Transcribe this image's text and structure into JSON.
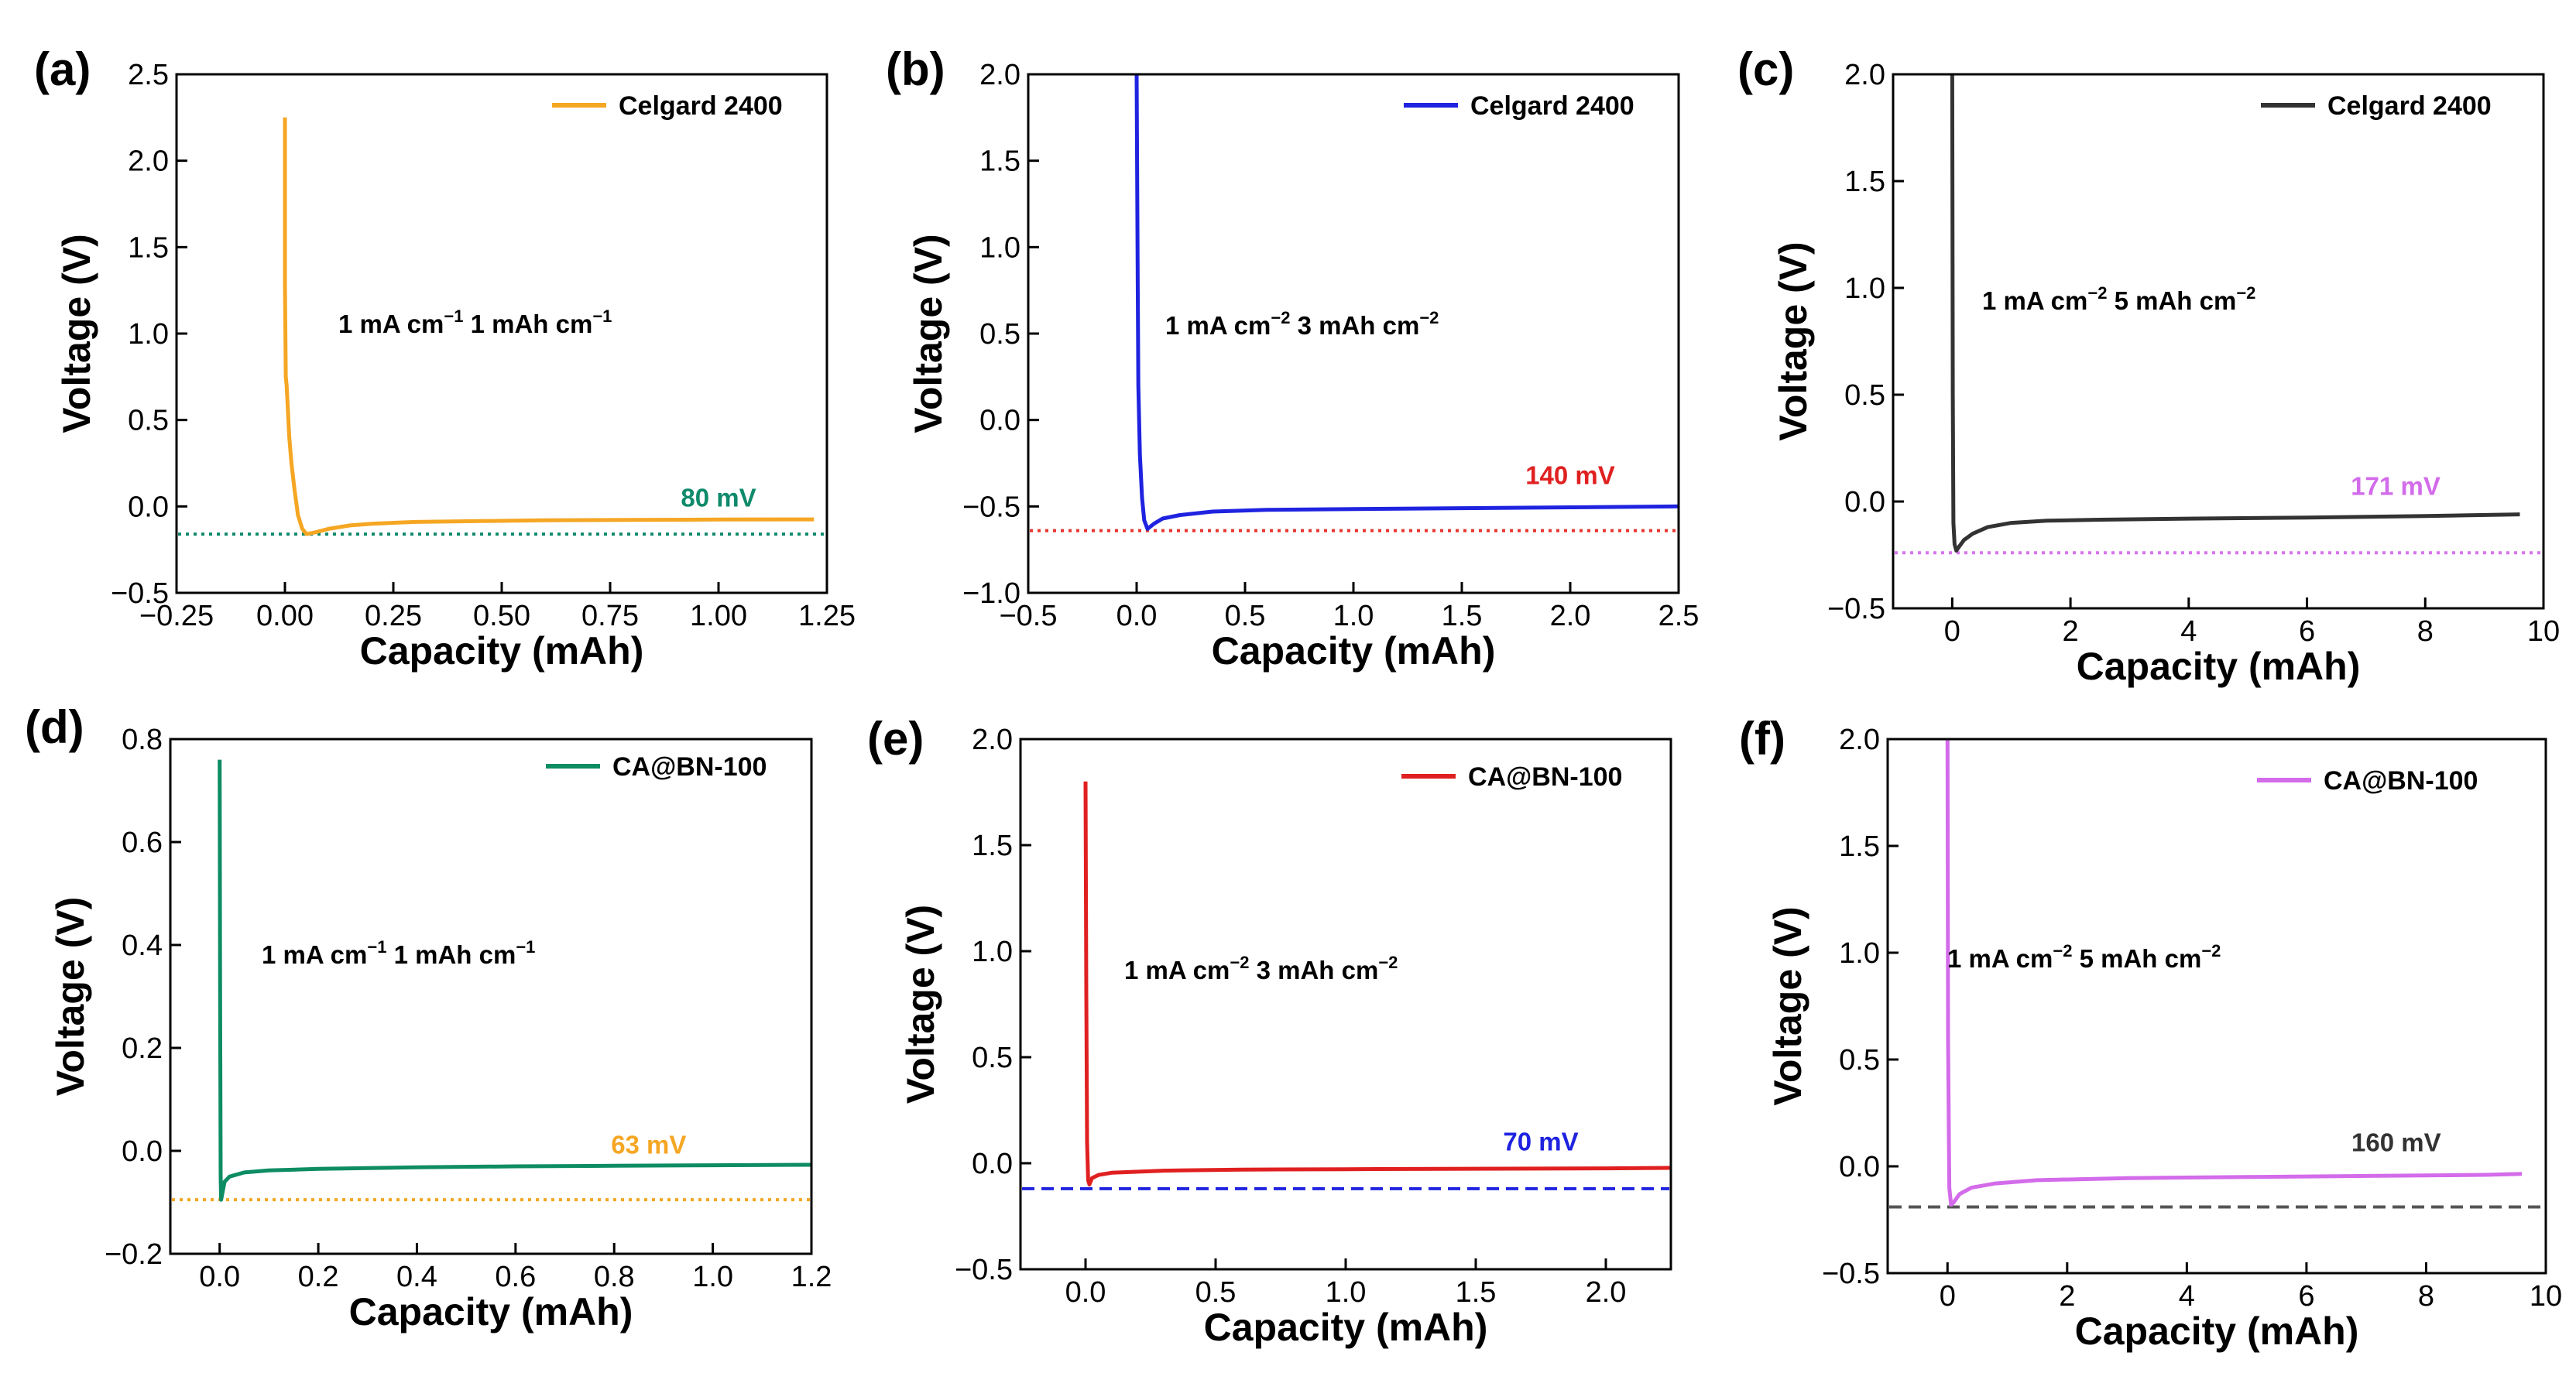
{
  "figure": {
    "description_free": true
  },
  "chart_data": [
    {
      "type": "line",
      "panel": "(a)",
      "xlabel": "Capacity (mAh)",
      "ylabel": "Voltage (V)",
      "xlim": [
        -0.25,
        1.25
      ],
      "ylim": [
        -0.5,
        2.5
      ],
      "xticks": [
        -0.25,
        0.0,
        0.25,
        0.5,
        0.75,
        1.0,
        1.25
      ],
      "xtick_labels": [
        "−0.25",
        "0.00",
        "0.25",
        "0.50",
        "0.75",
        "1.00",
        "1.25"
      ],
      "yticks": [
        -0.5,
        0.0,
        0.5,
        1.0,
        1.5,
        2.0,
        2.5
      ],
      "ytick_labels": [
        "−0.5",
        "0.0",
        "0.5",
        "1.0",
        "1.5",
        "2.0",
        "2.5"
      ],
      "legend": "Celgard 2400",
      "legend_position": "top-right",
      "condition": {
        "current": "1 mA cm",
        "current_exp": "−1",
        "capacity": "1 mAh cm",
        "capacity_exp": "−1"
      },
      "series": [
        {
          "name": "Celgard 2400",
          "color": "#F5A623",
          "x": [
            0.0,
            0.0,
            0.002,
            0.004,
            0.007,
            0.01,
            0.015,
            0.022,
            0.03,
            0.04,
            0.05,
            0.07,
            0.1,
            0.15,
            0.2,
            0.3,
            0.45,
            0.6,
            0.8,
            1.0,
            1.22
          ],
          "y": [
            2.25,
            1.3,
            0.75,
            0.7,
            0.55,
            0.4,
            0.25,
            0.1,
            -0.05,
            -0.13,
            -0.16,
            -0.15,
            -0.13,
            -0.11,
            -0.1,
            -0.09,
            -0.085,
            -0.08,
            -0.078,
            -0.076,
            -0.075
          ]
        }
      ],
      "reference_line": {
        "y": -0.16,
        "color": "#0F8A6A",
        "style": "dotted"
      },
      "overpotential_label": "80 mV",
      "overpotential_color": "#0F8A6A",
      "label_at": [
        1.0,
        -0.0
      ]
    },
    {
      "type": "line",
      "panel": "(b)",
      "xlabel": "Capacity (mAh)",
      "ylabel": "Voltage (V)",
      "xlim": [
        -0.5,
        2.5
      ],
      "ylim": [
        -1.0,
        2.0
      ],
      "xticks": [
        -0.5,
        0.0,
        0.5,
        1.0,
        1.5,
        2.0,
        2.5
      ],
      "xtick_labels": [
        "−0.5",
        "0.0",
        "0.5",
        "1.0",
        "1.5",
        "2.0",
        "2.5"
      ],
      "yticks": [
        -1.0,
        -0.5,
        0.0,
        0.5,
        1.0,
        1.5,
        2.0
      ],
      "ytick_labels": [
        "−1.0",
        "−0.5",
        "0.0",
        "0.5",
        "1.0",
        "1.5",
        "2.0"
      ],
      "legend": "Celgard 2400",
      "legend_position": "top-right",
      "condition": {
        "current": "1 mA cm",
        "current_exp": "−2",
        "capacity": "3 mAh cm",
        "capacity_exp": "−2"
      },
      "series": [
        {
          "name": "Celgard 2400",
          "color": "#1F23E0",
          "x": [
            0.0,
            0.005,
            0.008,
            0.015,
            0.025,
            0.035,
            0.05,
            0.08,
            0.12,
            0.2,
            0.35,
            0.6,
            1.0,
            1.5,
            2.0,
            2.5
          ],
          "y": [
            2.0,
            0.8,
            0.2,
            -0.2,
            -0.45,
            -0.58,
            -0.63,
            -0.6,
            -0.57,
            -0.55,
            -0.53,
            -0.52,
            -0.515,
            -0.51,
            -0.505,
            -0.5
          ]
        }
      ],
      "reference_line": {
        "y": -0.64,
        "color": "#E8352E",
        "style": "dotted"
      },
      "overpotential_label": "140 mV",
      "overpotential_color": "#E02020",
      "label_at": [
        2.0,
        -0.37
      ]
    },
    {
      "type": "line",
      "panel": "(c)",
      "xlabel": "Capacity (mAh)",
      "ylabel": "Voltage (V)",
      "xlim": [
        -1,
        10
      ],
      "ylim": [
        -0.5,
        2.0
      ],
      "xticks": [
        0,
        2,
        4,
        6,
        8,
        10
      ],
      "xtick_labels": [
        "0",
        "2",
        "4",
        "6",
        "8",
        "10"
      ],
      "yticks": [
        -0.5,
        0.0,
        0.5,
        1.0,
        1.5,
        2.0
      ],
      "ytick_labels": [
        "−0.5",
        "0.0",
        "0.5",
        "1.0",
        "1.5",
        "2.0"
      ],
      "legend": "Celgard 2400",
      "legend_position": "top-right",
      "condition": {
        "current": "1 mA cm",
        "current_exp": "−2",
        "capacity": "5 mAh cm",
        "capacity_exp": "−2"
      },
      "series": [
        {
          "name": "Celgard 2400",
          "color": "#333333",
          "x": [
            0.0,
            0.01,
            0.02,
            0.04,
            0.07,
            0.12,
            0.2,
            0.35,
            0.6,
            1.0,
            1.6,
            2.5,
            4.0,
            6.0,
            8.0,
            9.6
          ],
          "y": [
            2.0,
            0.5,
            -0.1,
            -0.2,
            -0.23,
            -0.21,
            -0.18,
            -0.15,
            -0.12,
            -0.1,
            -0.09,
            -0.085,
            -0.08,
            -0.075,
            -0.068,
            -0.06
          ]
        }
      ],
      "reference_line": {
        "y": -0.24,
        "color": "#D874EE",
        "style": "dotted"
      },
      "overpotential_label": "171 mV",
      "overpotential_color": "#D36BEA",
      "label_at": [
        7.5,
        0.03
      ]
    },
    {
      "type": "line",
      "panel": "(d)",
      "xlabel": "Capacity (mAh)",
      "ylabel": "Voltage (V)",
      "xlim": [
        -0.1,
        1.2
      ],
      "ylim": [
        -0.2,
        0.8
      ],
      "xticks": [
        0.0,
        0.2,
        0.4,
        0.6,
        0.8,
        1.0,
        1.2
      ],
      "xtick_labels": [
        "0.0",
        "0.2",
        "0.4",
        "0.6",
        "0.8",
        "1.0",
        "1.2"
      ],
      "yticks": [
        -0.2,
        0.0,
        0.2,
        0.4,
        0.6,
        0.8
      ],
      "ytick_labels": [
        "−0.2",
        "0.0",
        "0.2",
        "0.4",
        "0.6",
        "0.8"
      ],
      "legend": "CA@BN-100",
      "legend_position": "top-right",
      "condition": {
        "current": "1 mA cm",
        "current_exp": "−1",
        "capacity": "1 mAh cm",
        "capacity_exp": "−1"
      },
      "series": [
        {
          "name": "CA@BN-100",
          "color": "#0E8C63",
          "x": [
            0.0,
            0.001,
            0.002,
            0.003,
            0.006,
            0.01,
            0.02,
            0.05,
            0.1,
            0.2,
            0.4,
            0.6,
            0.8,
            1.0,
            1.2
          ],
          "y": [
            0.76,
            0.3,
            -0.05,
            -0.095,
            -0.08,
            -0.06,
            -0.05,
            -0.042,
            -0.038,
            -0.035,
            -0.032,
            -0.03,
            -0.029,
            -0.028,
            -0.027
          ]
        }
      ],
      "reference_line": {
        "y": -0.095,
        "color": "#F5A623",
        "style": "dotted"
      },
      "overpotential_label": "63 mV",
      "overpotential_color": "#F5A623",
      "label_at": [
        0.87,
        -0.005
      ]
    },
    {
      "type": "line",
      "panel": "(e)",
      "xlabel": "Capacity (mAh)",
      "ylabel": "Voltage (V)",
      "xlim": [
        -0.25,
        2.25
      ],
      "ylim": [
        -0.5,
        2.0
      ],
      "xticks": [
        0.0,
        0.5,
        1.0,
        1.5,
        2.0
      ],
      "xtick_labels": [
        "0.0",
        "0.5",
        "1.0",
        "1.5",
        "2.0"
      ],
      "yticks": [
        -0.5,
        0.0,
        0.5,
        1.0,
        1.5,
        2.0
      ],
      "ytick_labels": [
        "−0.5",
        "0.0",
        "0.5",
        "1.0",
        "1.5",
        "2.0"
      ],
      "legend": "CA@BN-100",
      "legend_position": "top-right",
      "condition": {
        "current": "1 mA cm",
        "current_exp": "−2",
        "capacity": "3 mAh cm",
        "capacity_exp": "−2"
      },
      "series": [
        {
          "name": "CA@BN-100",
          "color": "#E02020",
          "x": [
            0.0,
            0.003,
            0.006,
            0.01,
            0.015,
            0.025,
            0.05,
            0.1,
            0.3,
            0.6,
            1.0,
            1.5,
            2.0,
            2.25
          ],
          "y": [
            1.8,
            0.8,
            0.1,
            -0.08,
            -0.1,
            -0.07,
            -0.055,
            -0.045,
            -0.035,
            -0.03,
            -0.028,
            -0.026,
            -0.024,
            -0.022
          ]
        }
      ],
      "reference_line": {
        "y": -0.12,
        "color": "#1F23E0",
        "style": "dashed"
      },
      "overpotential_label": "70 mV",
      "overpotential_color": "#1F23E0",
      "label_at": [
        1.75,
        0.06
      ]
    },
    {
      "type": "line",
      "panel": "(f)",
      "xlabel": "Capacity (mAh)",
      "ylabel": "Voltage (V)",
      "xlim": [
        -1,
        10
      ],
      "ylim": [
        -0.5,
        2.0
      ],
      "xticks": [
        0,
        2,
        4,
        6,
        8,
        10
      ],
      "xtick_labels": [
        "0",
        "2",
        "4",
        "6",
        "8",
        "10"
      ],
      "yticks": [
        -0.5,
        0.0,
        0.5,
        1.0,
        1.5,
        2.0
      ],
      "ytick_labels": [
        "−0.5",
        "0.0",
        "0.5",
        "1.0",
        "1.5",
        "2.0"
      ],
      "legend": "CA@BN-100",
      "legend_position": "top-right",
      "condition": {
        "current": "1 mA cm",
        "current_exp": "−2",
        "capacity": "5 mAh cm",
        "capacity_exp": "−2"
      },
      "series": [
        {
          "name": "CA@BN-100",
          "color": "#D36BEA",
          "x": [
            0.0,
            0.01,
            0.03,
            0.06,
            0.1,
            0.2,
            0.4,
            0.8,
            1.5,
            3.0,
            5.0,
            7.0,
            9.0,
            9.6
          ],
          "y": [
            2.0,
            0.6,
            -0.1,
            -0.18,
            -0.17,
            -0.13,
            -0.1,
            -0.08,
            -0.065,
            -0.055,
            -0.05,
            -0.045,
            -0.04,
            -0.035
          ]
        }
      ],
      "reference_line": {
        "y": -0.19,
        "color": "#555555",
        "style": "dashed"
      },
      "overpotential_label": "160 mV",
      "overpotential_color": "#333333",
      "label_at": [
        7.5,
        0.07
      ]
    }
  ]
}
